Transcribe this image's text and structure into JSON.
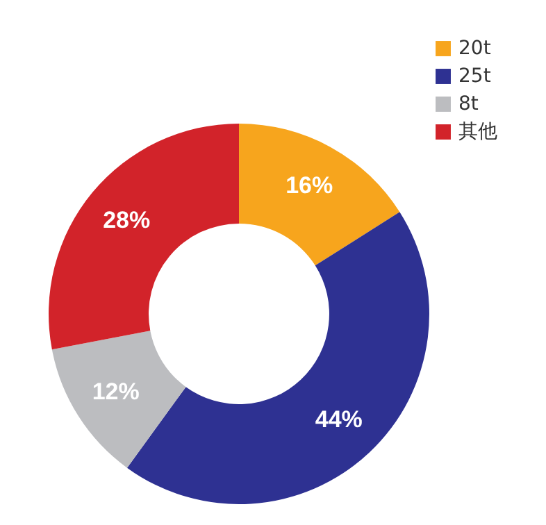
{
  "chart_data": {
    "type": "donut",
    "categories": [
      "20t",
      "25t",
      "8t",
      "其他"
    ],
    "values": [
      16,
      44,
      12,
      28
    ],
    "colors": [
      "#f7a51d",
      "#2e3192",
      "#bcbdc0",
      "#d2232a"
    ],
    "value_labels": [
      "16%",
      "44%",
      "12%",
      "28%"
    ],
    "legend": "top right"
  }
}
